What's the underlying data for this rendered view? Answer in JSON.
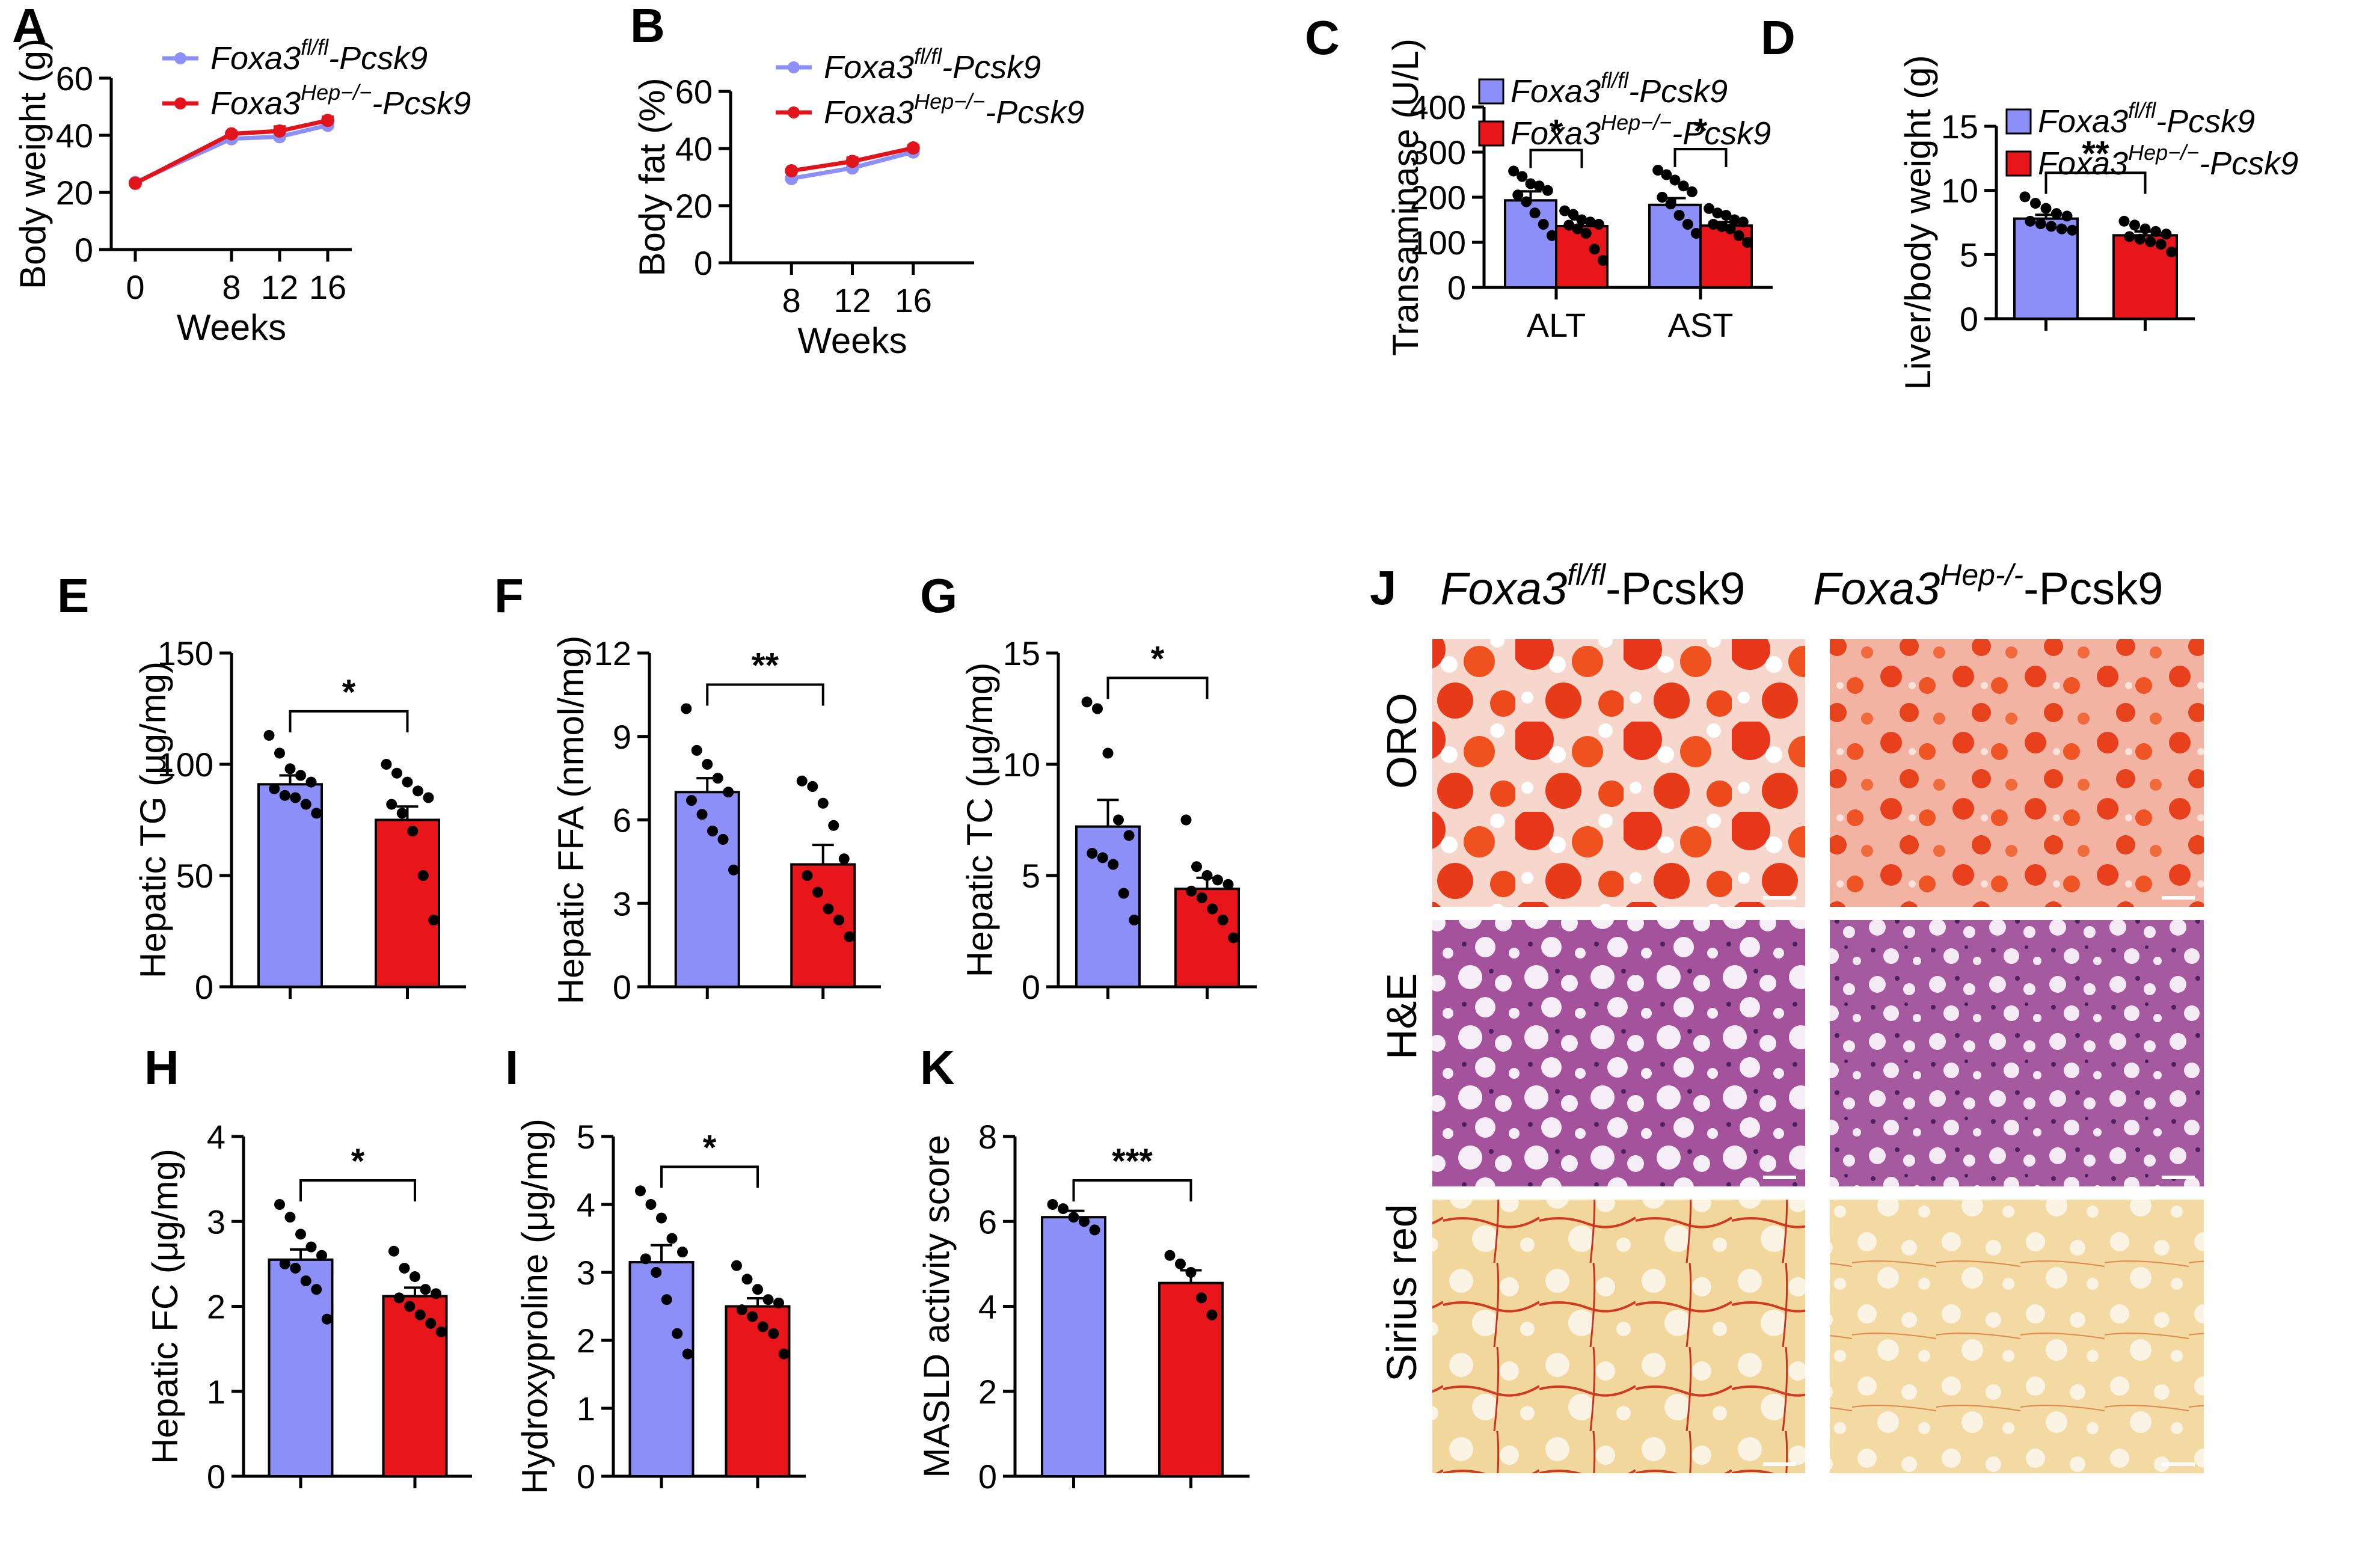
{
  "colors": {
    "wt": "#8b8ff7",
    "ko": "#e8161b",
    "line_wt": "#8b8ff7",
    "line_ko": "#e1141b"
  },
  "legend": {
    "wt": {
      "gene": "Foxa3",
      "sup": "fl/fl",
      "suffix": "-Pcsk9"
    },
    "ko": {
      "gene": "Foxa3",
      "sup": "Hep−/−",
      "suffix": "-Pcsk9"
    }
  },
  "chart_data": [
    {
      "id": "A",
      "panel_label": "A",
      "type": "line",
      "xlabel": "Weeks",
      "ylabel": "Body weight (g)",
      "x": [
        0,
        8,
        12,
        16
      ],
      "xlim": [
        -2,
        18
      ],
      "ylim": [
        0,
        60
      ],
      "yticks": [
        "0",
        "20",
        "40",
        "60"
      ],
      "xticks": [
        "0",
        "8",
        "12",
        "16"
      ],
      "series": [
        {
          "name": "Foxa3fl/fl-Pcsk9",
          "values": [
            23.5,
            38.8,
            39.5,
            43.5
          ],
          "err": [
            0.5,
            0.6,
            0.6,
            0.8
          ]
        },
        {
          "name": "Foxa3Hep-/--Pcsk9",
          "values": [
            23.2,
            40.5,
            41.5,
            45.2
          ],
          "err": [
            0.5,
            0.6,
            1.5,
            1.2
          ]
        }
      ]
    },
    {
      "id": "B",
      "panel_label": "B",
      "type": "line",
      "xlabel": "Weeks",
      "ylabel": "Body fat (%)",
      "x": [
        8,
        12,
        16
      ],
      "xlim": [
        4,
        20
      ],
      "ylim": [
        0,
        60
      ],
      "yticks": [
        "0",
        "20",
        "40",
        "60"
      ],
      "xticks": [
        "8",
        "12",
        "16"
      ],
      "series": [
        {
          "name": "Foxa3fl/fl-Pcsk9",
          "values": [
            29.5,
            33.2,
            38.8
          ],
          "err": [
            0.5,
            1.5,
            0.6
          ]
        },
        {
          "name": "Foxa3Hep-/--Pcsk9",
          "values": [
            32.2,
            35.5,
            40.2
          ],
          "err": [
            0.5,
            1.2,
            0.8
          ]
        }
      ]
    },
    {
      "id": "C",
      "panel_label": "C",
      "type": "bar",
      "xlabel": "",
      "ylabel": "Transaminase (U/L)",
      "categories": [
        "ALT",
        "AST"
      ],
      "ylim": [
        0,
        400
      ],
      "yticks": [
        "0",
        "100",
        "200",
        "300",
        "400"
      ],
      "series": [
        {
          "name": "Foxa3fl/fl-Pcsk9",
          "values": [
            193,
            183
          ],
          "err": [
            20,
            15
          ],
          "points": [
            [
              258,
              246,
              230,
              225,
              215,
              205,
              190,
              165,
              140,
              115
            ],
            [
              260,
              250,
              238,
              225,
              212,
              200,
              185,
              160,
              140,
              120
            ]
          ]
        },
        {
          "name": "Foxa3Hep-/--Pcsk9",
          "values": [
            136,
            137
          ],
          "err": [
            15,
            8
          ],
          "points": [
            [
              170,
              162,
              150,
              145,
              140,
              138,
              130,
              120,
              85,
              60
            ],
            [
              175,
              165,
              160,
              150,
              145,
              140,
              135,
              130,
              115,
              100
            ]
          ]
        }
      ],
      "significance": [
        "*",
        "*"
      ]
    },
    {
      "id": "D",
      "panel_label": "D",
      "type": "bar",
      "xlabel": "",
      "ylabel": "Liver/body weight (g)",
      "categories": [
        "Foxa3fl/fl-Pcsk9",
        "Foxa3Hep-/--Pcsk9"
      ],
      "ylim": [
        0,
        15
      ],
      "yticks": [
        "0",
        "5",
        "10",
        "15"
      ],
      "values": [
        7.8,
        6.5
      ],
      "err": [
        0.3,
        0.3
      ],
      "points": [
        [
          9.5,
          9.0,
          8.6,
          8.2,
          8.0,
          7.6,
          7.4,
          7.2,
          7.0,
          6.9
        ],
        [
          7.6,
          7.3,
          7.0,
          6.8,
          6.6,
          6.4,
          6.2,
          6.0,
          5.8,
          5.2
        ]
      ],
      "significance": "**"
    },
    {
      "id": "E",
      "panel_label": "E",
      "type": "bar",
      "xlabel": "",
      "ylabel": "Hepatic TG (μg/mg)",
      "categories": [
        "Foxa3fl/fl-Pcsk9",
        "Foxa3Hep-/--Pcsk9"
      ],
      "ylim": [
        0,
        150
      ],
      "yticks": [
        "0",
        "50",
        "100",
        "150"
      ],
      "values": [
        91,
        75
      ],
      "err": [
        4,
        6
      ],
      "points": [
        [
          113,
          105,
          98,
          95,
          92,
          89,
          86,
          85,
          82,
          78
        ],
        [
          100,
          96,
          92,
          88,
          85,
          82,
          78,
          70,
          50,
          30
        ]
      ],
      "significance": "*"
    },
    {
      "id": "F",
      "panel_label": "F",
      "type": "bar",
      "xlabel": "",
      "ylabel": "Hepatic FFA (nmol/mg)",
      "categories": [
        "Foxa3fl/fl-Pcsk9",
        "Foxa3Hep-/--Pcsk9"
      ],
      "ylim": [
        0,
        12
      ],
      "yticks": [
        "0",
        "3",
        "6",
        "9",
        "12"
      ],
      "values": [
        7.0,
        4.4
      ],
      "err": [
        0.5,
        0.7
      ],
      "points": [
        [
          10.0,
          8.5,
          8.0,
          7.5,
          7.0,
          6.7,
          6.2,
          5.6,
          5.3,
          4.2
        ],
        [
          7.4,
          7.2,
          6.6,
          5.8,
          4.6,
          4.0,
          3.4,
          2.8,
          2.4,
          1.8
        ]
      ],
      "significance": "**"
    },
    {
      "id": "G",
      "panel_label": "G",
      "type": "bar",
      "xlabel": "",
      "ylabel": "Hepatic TC (μg/mg)",
      "categories": [
        "Foxa3fl/fl-Pcsk9",
        "Foxa3Hep-/--Pcsk9"
      ],
      "ylim": [
        0,
        15
      ],
      "yticks": [
        "0",
        "5",
        "10",
        "15"
      ],
      "values": [
        7.2,
        4.4
      ],
      "err": [
        1.2,
        0.5
      ],
      "points": [
        [
          12.8,
          12.5,
          10.5,
          7.5,
          6.8,
          6.0,
          5.8,
          5.5,
          4.2,
          3.0
        ],
        [
          7.5,
          5.4,
          5.0,
          4.8,
          4.6,
          4.3,
          4.0,
          3.5,
          3.0,
          2.2
        ]
      ],
      "significance": "*"
    },
    {
      "id": "H",
      "panel_label": "H",
      "type": "bar",
      "xlabel": "",
      "ylabel": "Hepatic FC (μg/mg)",
      "categories": [
        "Foxa3fl/fl-Pcsk9",
        "Foxa3Hep-/--Pcsk9"
      ],
      "ylim": [
        0,
        4
      ],
      "yticks": [
        "0",
        "1",
        "2",
        "3",
        "4"
      ],
      "values": [
        2.55,
        2.12
      ],
      "err": [
        0.12,
        0.1
      ],
      "points": [
        [
          3.2,
          3.05,
          2.85,
          2.7,
          2.6,
          2.5,
          2.45,
          2.3,
          2.2,
          1.85
        ],
        [
          2.65,
          2.45,
          2.35,
          2.2,
          2.15,
          2.1,
          2.0,
          1.9,
          1.8,
          1.7
        ]
      ],
      "significance": "*"
    },
    {
      "id": "I",
      "panel_label": "I",
      "type": "bar",
      "xlabel": "",
      "ylabel": "Hydroxyproline (μg/mg)",
      "categories": [
        "Foxa3fl/fl-Pcsk9",
        "Foxa3Hep-/--Pcsk9"
      ],
      "ylim": [
        0,
        5
      ],
      "yticks": [
        "0",
        "1",
        "2",
        "3",
        "4",
        "5"
      ],
      "values": [
        3.15,
        2.5
      ],
      "err": [
        0.25,
        0.12
      ],
      "points": [
        [
          4.2,
          4.0,
          3.8,
          3.5,
          3.3,
          3.2,
          3.0,
          2.6,
          2.1,
          1.8
        ],
        [
          3.1,
          2.9,
          2.75,
          2.6,
          2.55,
          2.45,
          2.35,
          2.2,
          2.1,
          1.8
        ]
      ],
      "significance": "*"
    },
    {
      "id": "K",
      "panel_label": "K",
      "type": "bar",
      "xlabel": "",
      "ylabel": "MASLD activity score",
      "categories": [
        "Foxa3fl/fl-Pcsk9",
        "Foxa3Hep-/--Pcsk9"
      ],
      "ylim": [
        0,
        8
      ],
      "yticks": [
        "0",
        "2",
        "4",
        "6",
        "8"
      ],
      "values": [
        6.1,
        4.55
      ],
      "err": [
        0.15,
        0.3
      ],
      "points": [
        [
          6.4,
          6.3,
          6.1,
          6.0,
          5.8
        ],
        [
          5.2,
          5.0,
          4.8,
          4.2,
          3.8
        ]
      ],
      "significance": "***"
    }
  ],
  "panel_J": {
    "label": "J",
    "columns": [
      {
        "gene": "Foxa3",
        "sup": "fl/fl",
        "suffix": "-Pcsk9"
      },
      {
        "gene": "Foxa3",
        "sup": "Hep-/-",
        "suffix": "-Pcsk9"
      }
    ],
    "rows": [
      "ORO",
      "H&E",
      "Sirius red"
    ]
  }
}
